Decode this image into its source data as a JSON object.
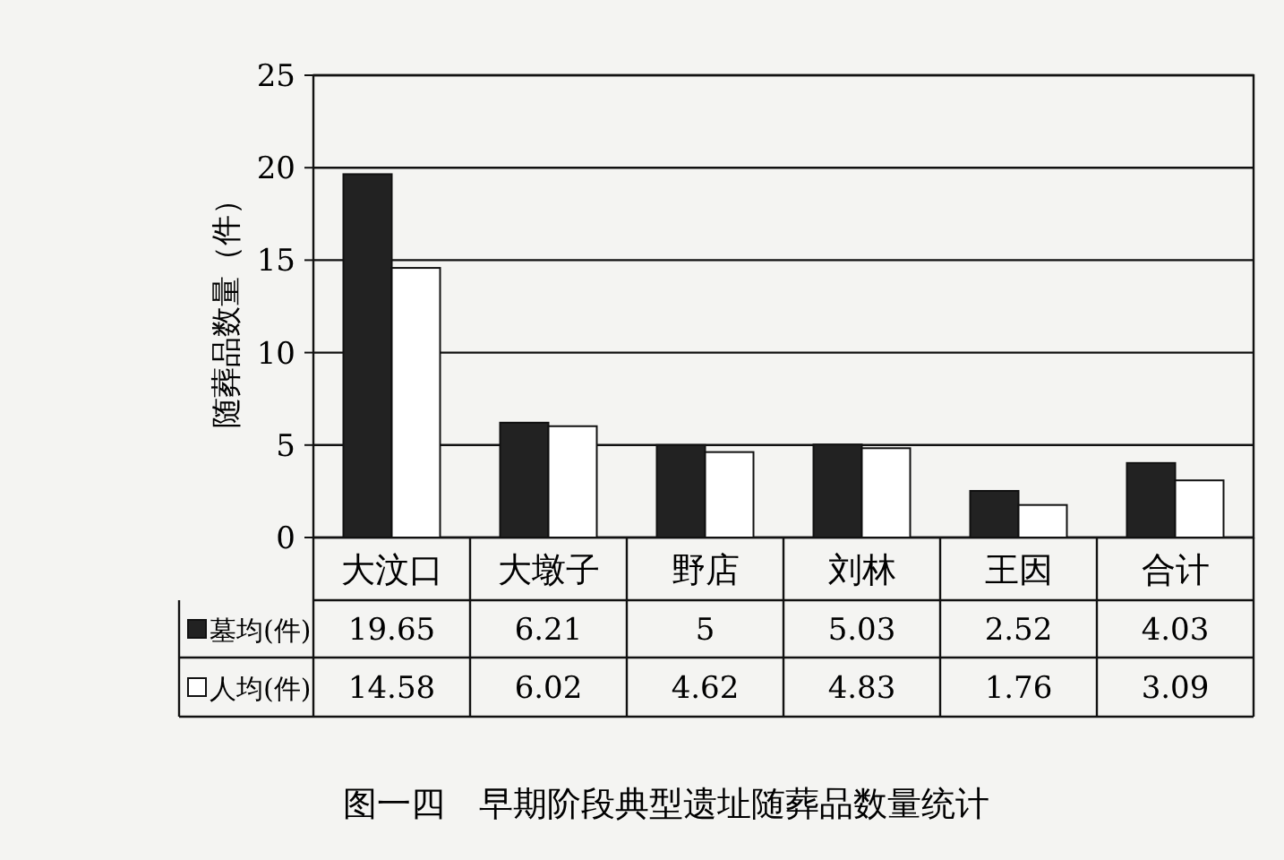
{
  "chart_data": {
    "type": "bar",
    "title": "图一四　早期阶段典型遗址随葬品数量统计",
    "ylabel": "随葬品数量（件）",
    "categories": [
      "大汶口",
      "大墩子",
      "野店",
      "刘林",
      "王因",
      "合计"
    ],
    "series": [
      {
        "name": "墓均(件)",
        "color": "#222222",
        "values": [
          19.65,
          6.21,
          5,
          5.03,
          2.52,
          4.03
        ]
      },
      {
        "name": "人均(件)",
        "color": "#ffffff",
        "values": [
          14.58,
          6.02,
          4.62,
          4.83,
          1.76,
          3.09
        ]
      }
    ],
    "ylim": [
      0,
      25
    ],
    "yticks": [
      0,
      5,
      10,
      15,
      20,
      25
    ],
    "grid": "y",
    "legend": "bottom",
    "data_labels": true
  }
}
